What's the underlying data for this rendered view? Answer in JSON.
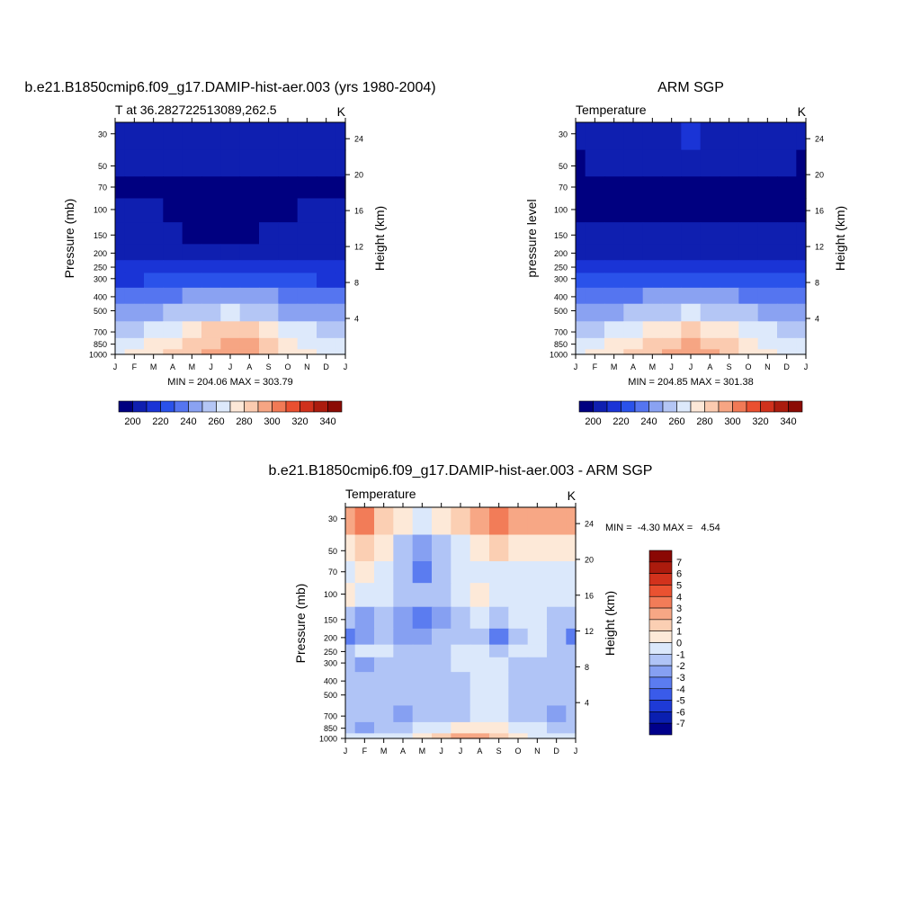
{
  "chart_data": [
    {
      "type": "heatmap",
      "id": "model",
      "main_title": "b.e21.B1850cmip6.f09_g17.DAMIP-hist-aer.003 (yrs 1980-2004)",
      "left_string": "T at 36.282722513089,262.5",
      "right_string": "K",
      "ylabel": "Pressure (mb)",
      "ylabel_right": "Height (km)",
      "x_ticks": [
        "J",
        "F",
        "M",
        "A",
        "M",
        "J",
        "J",
        "A",
        "S",
        "O",
        "N",
        "D",
        "J"
      ],
      "y_ticks": [
        "30",
        "50",
        "70",
        "100",
        "150",
        "200",
        "250",
        "300",
        "400",
        "500",
        "700",
        "850",
        "1000"
      ],
      "y_ticks_right": [
        "24",
        "20",
        "16",
        "12",
        "8",
        "4"
      ],
      "minmax": "MIN = 204.06 MAX = 303.79",
      "colorbar_labels": [
        "200",
        "220",
        "240",
        "260",
        "280",
        "300",
        "320",
        "340"
      ],
      "levels": [
        200,
        210,
        220,
        230,
        240,
        250,
        260,
        270,
        280,
        290,
        300,
        310,
        320,
        330,
        340,
        350
      ],
      "months": [
        "J",
        "F",
        "M",
        "A",
        "M",
        "J",
        "J",
        "A",
        "S",
        "O",
        "N",
        "D",
        "J"
      ],
      "pressure_levels": [
        30,
        50,
        70,
        100,
        150,
        200,
        250,
        300,
        400,
        500,
        700,
        850,
        1000
      ],
      "temperature_K": [
        [
          214,
          214,
          214,
          215,
          217,
          218,
          219,
          219,
          218,
          216,
          215,
          214,
          214
        ],
        [
          211,
          211,
          211,
          211,
          211,
          211,
          211,
          211,
          211,
          211,
          211,
          211,
          211
        ],
        [
          208,
          208,
          208,
          207,
          206,
          206,
          206,
          206,
          206,
          206,
          207,
          208,
          208
        ],
        [
          211,
          211,
          210,
          209,
          207,
          206,
          206,
          206,
          207,
          209,
          210,
          211,
          211
        ],
        [
          213,
          213,
          213,
          212,
          209,
          208,
          208,
          208,
          210,
          212,
          213,
          213,
          213
        ],
        [
          216,
          216,
          216,
          215,
          214,
          214,
          214,
          214,
          215,
          216,
          216,
          216,
          216
        ],
        [
          221,
          221,
          222,
          223,
          224,
          225,
          226,
          225,
          224,
          223,
          222,
          221,
          221
        ],
        [
          229,
          229,
          231,
          233,
          235,
          237,
          238,
          237,
          235,
          232,
          230,
          229,
          229
        ],
        [
          243,
          243,
          245,
          248,
          251,
          254,
          255,
          254,
          251,
          247,
          244,
          243,
          243
        ],
        [
          254,
          254,
          257,
          261,
          265,
          268,
          270,
          269,
          265,
          259,
          255,
          254,
          254
        ],
        [
          268,
          269,
          273,
          279,
          285,
          290,
          292,
          290,
          285,
          277,
          271,
          268,
          268
        ],
        [
          275,
          276,
          281,
          288,
          294,
          299,
          302,
          300,
          294,
          285,
          278,
          275,
          275
        ],
        [
          279,
          280,
          285,
          291,
          297,
          302,
          303,
          301,
          296,
          288,
          282,
          279,
          279
        ]
      ]
    },
    {
      "type": "heatmap",
      "id": "obs",
      "main_title": "ARM SGP",
      "left_string": "Temperature",
      "right_string": "K",
      "ylabel": "pressure level",
      "ylabel_right": "Height (km)",
      "x_ticks": [
        "J",
        "F",
        "M",
        "A",
        "M",
        "J",
        "J",
        "A",
        "S",
        "O",
        "N",
        "D",
        "J"
      ],
      "y_ticks": [
        "30",
        "50",
        "70",
        "100",
        "150",
        "200",
        "250",
        "300",
        "400",
        "500",
        "700",
        "850",
        "1000"
      ],
      "y_ticks_right": [
        "24",
        "20",
        "16",
        "12",
        "8",
        "4"
      ],
      "minmax": "MIN = 204.85 MAX = 301.38",
      "colorbar_labels": [
        "200",
        "220",
        "240",
        "260",
        "280",
        "300",
        "320",
        "340"
      ],
      "levels": [
        200,
        210,
        220,
        230,
        240,
        250,
        260,
        270,
        280,
        290,
        300,
        310,
        320,
        330,
        340,
        350
      ],
      "months": [
        "J",
        "F",
        "M",
        "A",
        "M",
        "J",
        "J",
        "A",
        "S",
        "O",
        "N",
        "D",
        "J"
      ],
      "pressure_levels": [
        30,
        50,
        70,
        100,
        150,
        200,
        250,
        300,
        400,
        500,
        700,
        850,
        1000
      ],
      "temperature_K": [
        [
          213,
          213,
          214,
          215,
          217,
          219,
          220,
          219,
          218,
          216,
          214,
          213,
          213
        ],
        [
          209,
          210,
          211,
          211,
          211,
          211,
          211,
          211,
          211,
          211,
          211,
          210,
          209
        ],
        [
          207,
          208,
          206,
          207,
          207,
          207,
          207,
          207,
          207,
          207,
          207,
          207,
          207
        ],
        [
          208,
          209,
          209,
          208,
          207,
          206,
          206,
          206,
          207,
          208,
          209,
          209,
          208
        ],
        [
          213,
          213,
          213,
          212,
          211,
          210,
          210,
          210,
          211,
          212,
          213,
          213,
          213
        ],
        [
          216,
          216,
          216,
          215,
          214,
          214,
          214,
          214,
          215,
          216,
          216,
          216,
          216
        ],
        [
          222,
          222,
          222,
          223,
          224,
          225,
          226,
          225,
          224,
          223,
          222,
          222,
          222
        ],
        [
          230,
          230,
          231,
          233,
          236,
          238,
          239,
          238,
          236,
          233,
          231,
          230,
          230
        ],
        [
          243,
          243,
          245,
          248,
          252,
          255,
          256,
          255,
          252,
          248,
          245,
          243,
          243
        ],
        [
          255,
          255,
          257,
          261,
          265,
          268,
          270,
          269,
          265,
          260,
          256,
          255,
          255
        ],
        [
          269,
          269,
          272,
          278,
          284,
          289,
          291,
          289,
          284,
          277,
          271,
          269,
          269
        ],
        [
          276,
          276,
          280,
          287,
          293,
          298,
          301,
          299,
          293,
          285,
          279,
          276,
          276
        ],
        [
          279,
          280,
          284,
          290,
          296,
          300,
          301,
          300,
          295,
          288,
          282,
          279,
          279
        ]
      ]
    },
    {
      "type": "heatmap",
      "id": "diff",
      "main_title": "b.e21.B1850cmip6.f09_g17.DAMIP-hist-aer.003 - ARM SGP",
      "left_string": "Temperature",
      "right_string": "K",
      "ylabel": "Pressure (mb)",
      "ylabel_right": "Height (km)",
      "x_ticks": [
        "J",
        "F",
        "M",
        "A",
        "M",
        "J",
        "J",
        "A",
        "S",
        "O",
        "N",
        "D",
        "J"
      ],
      "y_ticks": [
        "30",
        "50",
        "70",
        "100",
        "150",
        "200",
        "250",
        "300",
        "400",
        "500",
        "700",
        "850",
        "1000"
      ],
      "y_ticks_right": [
        "24",
        "20",
        "16",
        "12",
        "8",
        "4"
      ],
      "minmax": "MIN =  -4.30 MAX =   4.54",
      "colorbar_labels": [
        "7",
        "6",
        "5",
        "4",
        "3",
        "2",
        "1",
        "0",
        "-1",
        "-2",
        "-3",
        "-4",
        "-5",
        "-6",
        "-7"
      ],
      "levels": [
        -8,
        -7,
        -6,
        -5,
        -4,
        -3,
        -2,
        -1,
        0,
        1,
        2,
        3,
        4,
        5,
        6,
        7,
        8
      ],
      "months": [
        "J",
        "F",
        "M",
        "A",
        "M",
        "J",
        "J",
        "A",
        "S",
        "O",
        "N",
        "D",
        "J"
      ],
      "pressure_levels": [
        30,
        50,
        70,
        100,
        150,
        200,
        250,
        300,
        400,
        500,
        700,
        850,
        1000
      ],
      "temperature_diff_K": [
        [
          2.5,
          3.5,
          1.5,
          0.5,
          -0.5,
          0.5,
          1.0,
          2.0,
          3.5,
          2.5,
          2.5,
          2.5,
          2.5
        ],
        [
          0.5,
          1.5,
          0.5,
          -1.5,
          -3.0,
          -1.5,
          -0.5,
          0.5,
          1.5,
          0.5,
          0.5,
          0.5,
          0.5
        ],
        [
          -0.5,
          0.5,
          -0.5,
          -2.0,
          -3.5,
          -2.0,
          -1.0,
          -0.5,
          -0.5,
          -0.5,
          -0.5,
          -0.5,
          -0.5
        ],
        [
          0.5,
          -0.5,
          -0.5,
          -1.5,
          -2.0,
          -1.5,
          -0.5,
          0.0,
          -0.5,
          -0.5,
          -0.5,
          -1.0,
          -1.0
        ],
        [
          -1.5,
          -2.5,
          -1.5,
          -3.0,
          -3.5,
          -2.5,
          -1.5,
          -1.0,
          -1.5,
          -1.0,
          -0.5,
          -2.0,
          -2.0
        ],
        [
          -3.5,
          -2.5,
          -2.0,
          -2.5,
          -2.5,
          -2.0,
          -1.5,
          -2.0,
          -3.5,
          -1.5,
          -1.0,
          -2.0,
          -3.5
        ],
        [
          -1.5,
          -1.0,
          -0.5,
          -1.5,
          -1.5,
          -1.5,
          -1.0,
          -1.0,
          -1.5,
          -1.0,
          -1.0,
          -1.5,
          -1.5
        ],
        [
          -1.5,
          -2.5,
          -1.5,
          -1.5,
          -1.5,
          -1.5,
          -1.0,
          -0.5,
          -1.0,
          -1.5,
          -1.5,
          -1.5,
          -1.5
        ],
        [
          -1.5,
          -1.5,
          -1.5,
          -1.5,
          -1.5,
          -1.5,
          -1.5,
          -1.0,
          -0.5,
          -1.5,
          -1.5,
          -1.5,
          -1.5
        ],
        [
          -1.5,
          -1.5,
          -2.0,
          -1.5,
          -1.5,
          -1.5,
          -1.5,
          -1.0,
          -0.5,
          -1.5,
          -1.5,
          -1.5,
          -1.5
        ],
        [
          -1.5,
          -2.0,
          -1.5,
          -2.5,
          -1.5,
          -1.5,
          -1.5,
          -1.0,
          -1.0,
          -1.5,
          -1.5,
          -2.5,
          -1.5
        ],
        [
          -2.0,
          -2.5,
          -1.5,
          -1.5,
          -1.0,
          -0.5,
          0.5,
          0.5,
          0.5,
          -0.5,
          -1.0,
          -2.0,
          -2.0
        ],
        [
          -1.0,
          -0.5,
          -0.5,
          -0.5,
          0.5,
          1.5,
          2.0,
          2.5,
          1.5,
          0.5,
          -0.5,
          -1.0,
          -1.0
        ]
      ]
    }
  ],
  "colors": {
    "temperature_scale": [
      "#000080",
      "#0f1fb0",
      "#1a34d6",
      "#2a52ea",
      "#5575f0",
      "#8aa2f2",
      "#b4c6f5",
      "#dde9fb",
      "#fde8d8",
      "#fbcbb0",
      "#f6a583",
      "#f17a56",
      "#ea5030",
      "#d0311c",
      "#ab1c0e",
      "#8b0b05"
    ],
    "difference_scale": [
      "#00008b",
      "#0a1fb0",
      "#1e3ad6",
      "#3a5bea",
      "#5b7cf0",
      "#86a0f2",
      "#b0c4f6",
      "#dbe8fb",
      "#fde9d8",
      "#fbcfb3",
      "#f7a785",
      "#f27c58",
      "#ea5231",
      "#d2321c",
      "#ac1b0d",
      "#8a0804"
    ]
  }
}
